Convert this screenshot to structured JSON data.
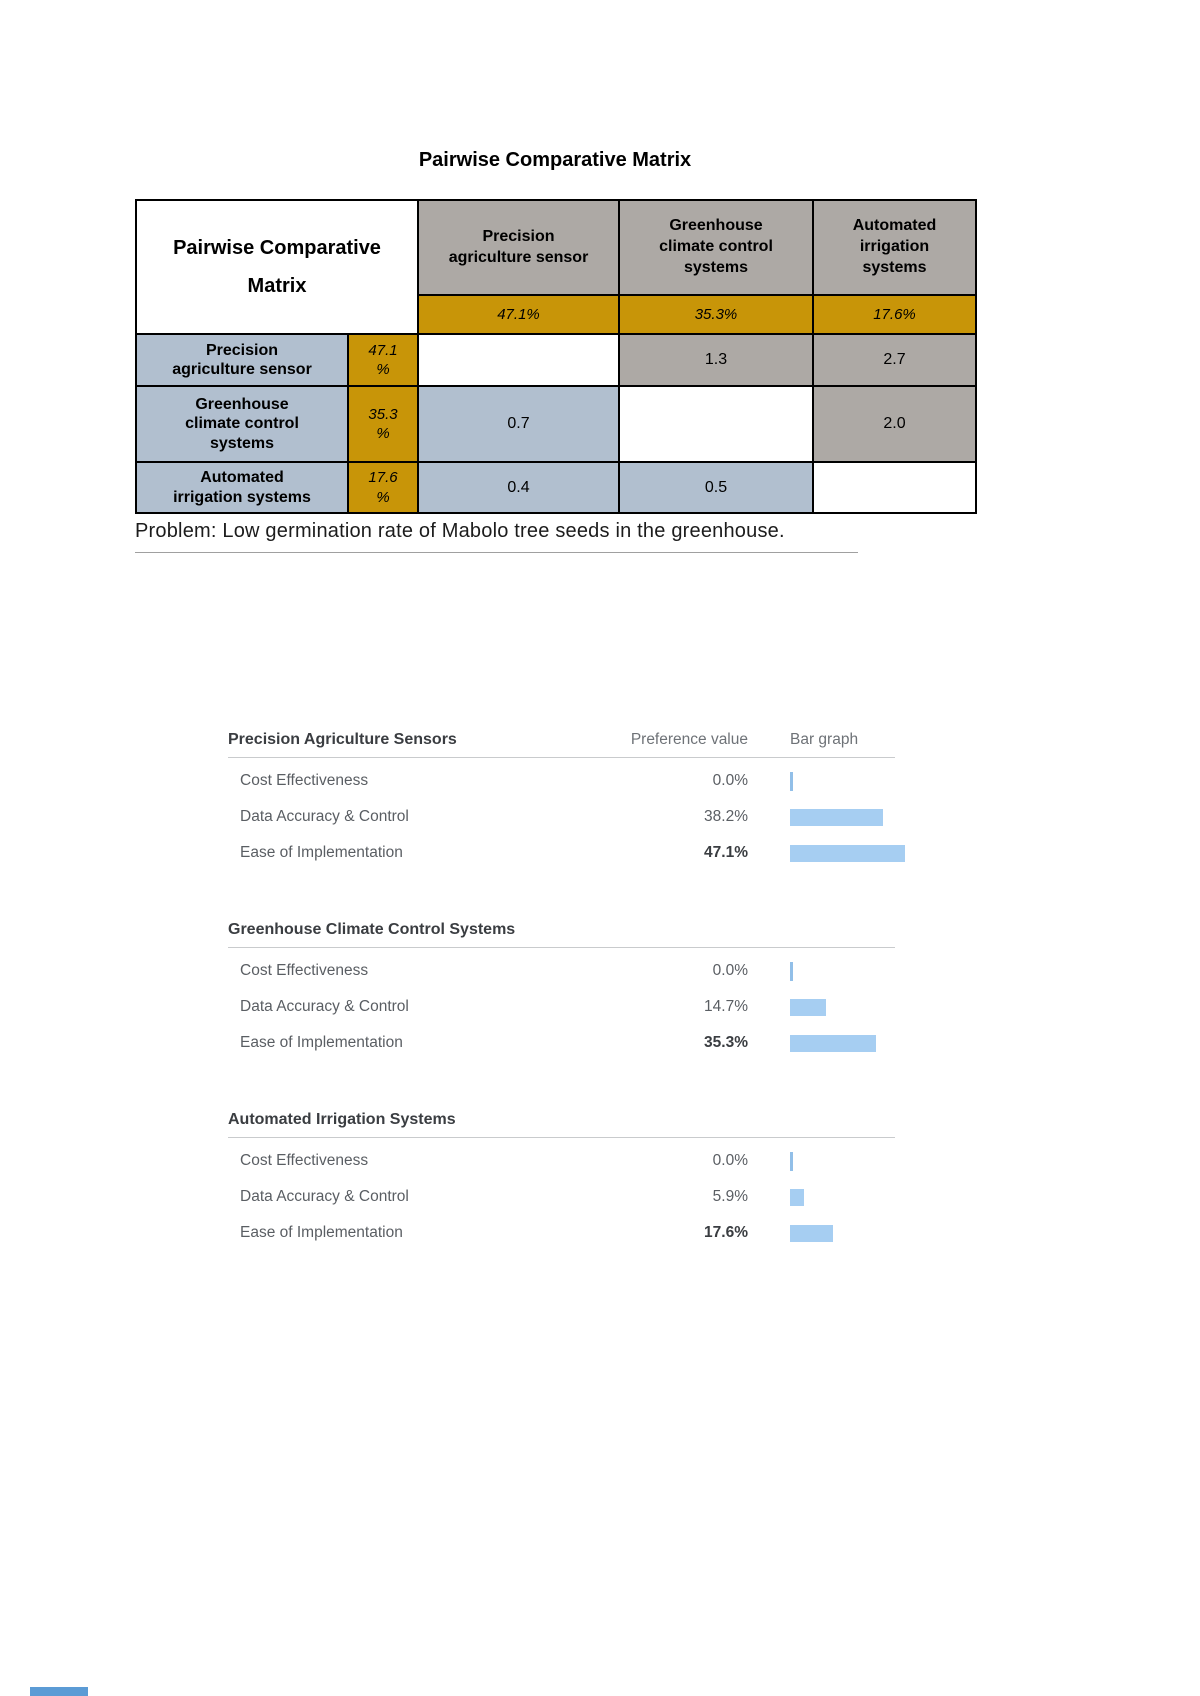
{
  "page": {
    "title": "Pairwise Comparative Matrix",
    "problem_text": "Problem: Low germination rate of Mabolo tree seeds in the greenhouse."
  },
  "matrix": {
    "corner_label": "Pairwise Comparative\nMatrix",
    "percent_sign": "%",
    "columns": [
      {
        "label": "Precision\nagriculture sensor",
        "weight": "47.1%"
      },
      {
        "label": "Greenhouse\nclimate control\nsystems",
        "weight": "35.3%"
      },
      {
        "label": "Automated\nirrigation\nsystems",
        "weight": "17.6%"
      }
    ],
    "rows": [
      {
        "label": "Precision\nagriculture sensor",
        "weight": "47.1",
        "cells": [
          "",
          "1.3",
          "2.7"
        ]
      },
      {
        "label": "Greenhouse\nclimate control\nsystems",
        "weight": "35.3",
        "cells": [
          "0.7",
          "",
          "2.0"
        ]
      },
      {
        "label": "Automated\nirrigation systems",
        "weight": "17.6",
        "cells": [
          "0.4",
          "0.5",
          ""
        ]
      }
    ]
  },
  "charts": {
    "value_header": "Preference value",
    "bar_header": "Bar graph",
    "sections": [
      {
        "title": "Precision Agriculture Sensors",
        "rows": [
          {
            "label": "Cost Effectiveness",
            "value": "0.0%",
            "pct": 0,
            "bold": false
          },
          {
            "label": "Data Accuracy & Control",
            "value": "38.2%",
            "pct": 38.2,
            "bold": false
          },
          {
            "label": "Ease of Implementation",
            "value": "47.1%",
            "pct": 47.1,
            "bold": true
          }
        ]
      },
      {
        "title": "Greenhouse Climate Control Systems",
        "rows": [
          {
            "label": "Cost Effectiveness",
            "value": "0.0%",
            "pct": 0,
            "bold": false
          },
          {
            "label": "Data Accuracy & Control",
            "value": "14.7%",
            "pct": 14.7,
            "bold": false
          },
          {
            "label": "Ease of Implementation",
            "value": "35.3%",
            "pct": 35.3,
            "bold": true
          }
        ]
      },
      {
        "title": "Automated Irrigation Systems",
        "rows": [
          {
            "label": "Cost Effectiveness",
            "value": "0.0%",
            "pct": 0,
            "bold": false
          },
          {
            "label": "Data Accuracy & Control",
            "value": "5.9%",
            "pct": 5.9,
            "bold": false
          },
          {
            "label": "Ease of Implementation",
            "value": "17.6%",
            "pct": 17.6,
            "bold": true
          }
        ]
      }
    ]
  },
  "chart_data": [
    {
      "type": "bar",
      "title": "Precision Agriculture Sensors",
      "categories": [
        "Cost Effectiveness",
        "Data Accuracy & Control",
        "Ease of Implementation"
      ],
      "values": [
        0.0,
        38.2,
        47.1
      ],
      "xlabel": "Preference value",
      "ylabel": "",
      "unit": "%",
      "xlim": [
        0,
        50
      ],
      "orientation": "horizontal"
    },
    {
      "type": "bar",
      "title": "Greenhouse Climate Control Systems",
      "categories": [
        "Cost Effectiveness",
        "Data Accuracy & Control",
        "Ease of Implementation"
      ],
      "values": [
        0.0,
        14.7,
        35.3
      ],
      "xlabel": "Preference value",
      "ylabel": "",
      "unit": "%",
      "xlim": [
        0,
        50
      ],
      "orientation": "horizontal"
    },
    {
      "type": "bar",
      "title": "Automated Irrigation Systems",
      "categories": [
        "Cost Effectiveness",
        "Data Accuracy & Control",
        "Ease of Implementation"
      ],
      "values": [
        0.0,
        5.9,
        17.6
      ],
      "xlabel": "Preference value",
      "ylabel": "",
      "unit": "%",
      "xlim": [
        0,
        50
      ],
      "orientation": "horizontal"
    }
  ],
  "colors": {
    "gold": "#C89508",
    "header_gray": "#ADA9A5",
    "label_blue": "#B1BFCF",
    "bar_blue": "#A6CEF2",
    "zero_tick_blue": "#92BFE8",
    "fragment_blue": "#5B9BD5"
  }
}
